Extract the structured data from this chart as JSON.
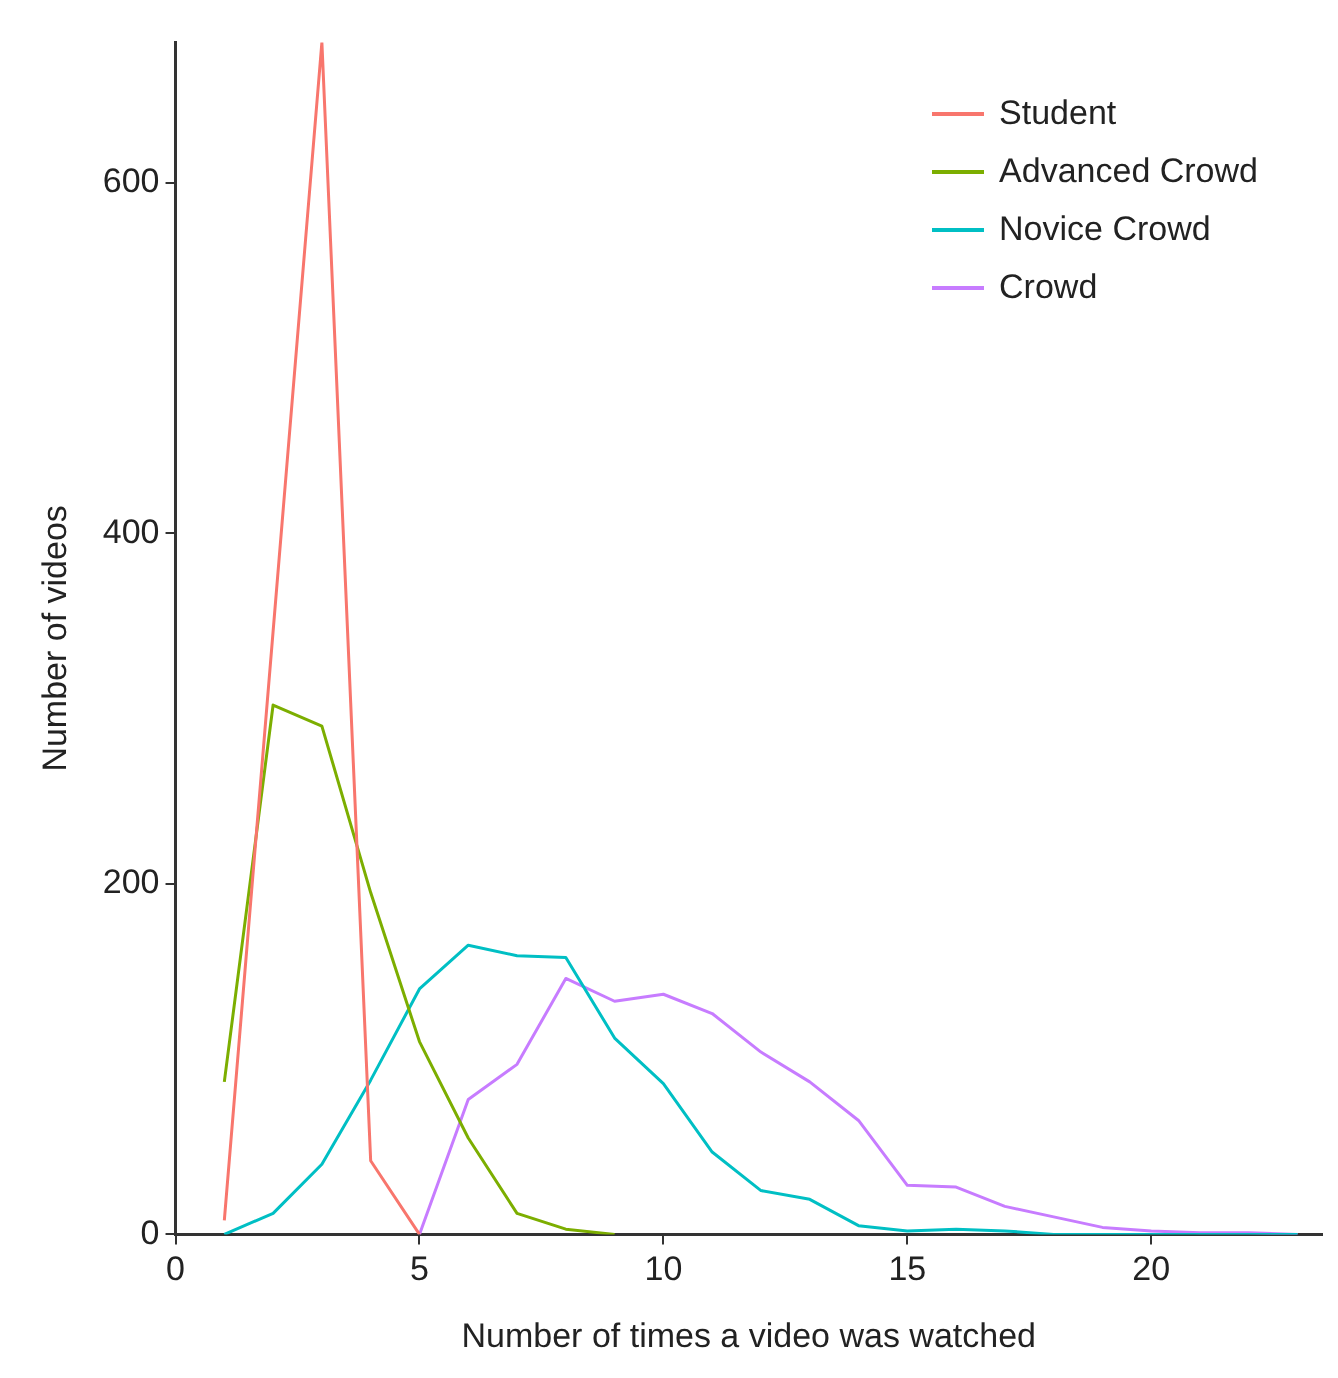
{
  "chart_data": {
    "type": "line",
    "xlabel": "Number of times a video was watched",
    "ylabel": "Number of videos",
    "xlim": [
      0,
      23.5
    ],
    "xticks": [
      0,
      5,
      10,
      15,
      20
    ],
    "ylim": [
      0,
      680
    ],
    "yticks": [
      0,
      200,
      400,
      600
    ],
    "grid": false,
    "legend": "top right",
    "marker": "none",
    "line_style": "solid",
    "series": [
      {
        "name": "Student",
        "color": "#f8766d",
        "x": [
          1,
          2,
          3,
          4,
          5
        ],
        "values": [
          8,
          344,
          680,
          42,
          0
        ]
      },
      {
        "name": "Advanced Crowd",
        "color": "#7cae00",
        "x": [
          1,
          2,
          3,
          4,
          5,
          6,
          7,
          8,
          9
        ],
        "values": [
          87,
          302,
          290,
          195,
          110,
          55,
          12,
          3,
          0
        ]
      },
      {
        "name": "Novice Crowd",
        "color": "#00bfc4",
        "x": [
          1,
          2,
          3,
          4,
          5,
          6,
          7,
          8,
          9,
          10,
          11,
          12,
          13,
          14,
          15,
          16,
          17,
          18,
          19,
          20,
          21,
          22,
          23
        ],
        "values": [
          0,
          12,
          40,
          88,
          140,
          165,
          159,
          158,
          112,
          86,
          47,
          25,
          20,
          5,
          2,
          3,
          2,
          0,
          0,
          0,
          0,
          0,
          0
        ]
      },
      {
        "name": "Crowd",
        "color": "#c77cff",
        "x": [
          5,
          6,
          7,
          8,
          9,
          10,
          11,
          12,
          13,
          14,
          15,
          16,
          17,
          18,
          19,
          20,
          21,
          22,
          23
        ],
        "values": [
          0,
          77,
          97,
          146,
          133,
          137,
          126,
          104,
          87,
          65,
          28,
          27,
          16,
          10,
          4,
          2,
          1,
          1,
          0
        ]
      }
    ]
  }
}
